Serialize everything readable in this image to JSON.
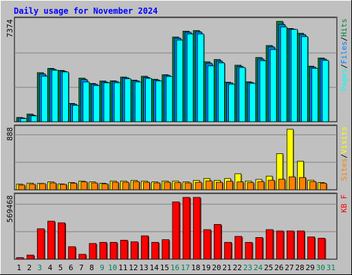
{
  "title": "Daily usage for November 2024",
  "colors": {
    "background": "#c0c0c0",
    "title": "#0000ff",
    "hits": "#008040",
    "files": "#0080ff",
    "pages": "#00ffff",
    "visits": "#ffff00",
    "sites": "#ff8000",
    "kbytes": "#ff0000",
    "weekend": "#00805c"
  },
  "chart_data": [
    {
      "type": "bar",
      "panel": "top",
      "ymax_label": "7374",
      "ylim": [
        0,
        7374
      ],
      "categories": [
        "1",
        "2",
        "3",
        "4",
        "5",
        "6",
        "7",
        "8",
        "9",
        "10",
        "11",
        "12",
        "13",
        "14",
        "15",
        "16",
        "17",
        "18",
        "19",
        "20",
        "21",
        "22",
        "23",
        "24",
        "25",
        "26",
        "27",
        "28",
        "29",
        "30",
        "31"
      ],
      "weekend_days": [
        "3",
        "9",
        "10",
        "16",
        "17",
        "23",
        "24",
        "30",
        "31"
      ],
      "legend": [
        {
          "label": "Hits",
          "color": "#008040"
        },
        {
          "label": "Files",
          "color": "#0080ff"
        },
        {
          "label": "Pages",
          "color": "#00ffff"
        }
      ],
      "series": [
        {
          "name": "Hits",
          "values": [
            310,
            560,
            3600,
            3920,
            3770,
            1340,
            3200,
            2810,
            2990,
            3000,
            3280,
            3050,
            3340,
            3120,
            3450,
            6220,
            6650,
            6700,
            4400,
            4570,
            2900,
            4150,
            2930,
            4720,
            5600,
            7374,
            6850,
            6500,
            4080,
            4680,
            0
          ]
        },
        {
          "name": "Files",
          "values": [
            280,
            480,
            3500,
            3850,
            3700,
            1280,
            3100,
            2750,
            2920,
            2950,
            3230,
            3000,
            3250,
            3060,
            3400,
            6130,
            6570,
            6600,
            4300,
            4450,
            2850,
            4060,
            2880,
            4600,
            5500,
            7150,
            6800,
            6400,
            4000,
            4600,
            0
          ]
        },
        {
          "name": "Pages",
          "values": [
            220,
            420,
            3340,
            3780,
            3650,
            1200,
            2920,
            2650,
            2850,
            2860,
            3150,
            2920,
            3180,
            2990,
            3320,
            6000,
            6450,
            6450,
            4100,
            4320,
            2760,
            3980,
            2820,
            4480,
            5300,
            6960,
            6780,
            6250,
            3920,
            4500,
            0
          ]
        }
      ]
    },
    {
      "type": "bar",
      "panel": "middle",
      "ymax_label": "888",
      "ylim": [
        0,
        888
      ],
      "legend": [
        {
          "label": "Visits",
          "color": "#ffff00"
        },
        {
          "label": "Sites",
          "color": "#ff8000"
        }
      ],
      "series": [
        {
          "name": "Visits",
          "values": [
            82,
            98,
            93,
            115,
            85,
            105,
            128,
            115,
            95,
            128,
            128,
            138,
            128,
            115,
            128,
            128,
            115,
            138,
            164,
            138,
            164,
            234,
            128,
            152,
            200,
            530,
            888,
            420,
            140,
            105,
            0
          ]
        },
        {
          "name": "Sites",
          "values": [
            70,
            82,
            90,
            100,
            80,
            95,
            115,
            100,
            85,
            110,
            110,
            120,
            110,
            100,
            110,
            105,
            100,
            110,
            130,
            110,
            125,
            115,
            105,
            120,
            140,
            155,
            190,
            180,
            120,
            95,
            0
          ]
        }
      ]
    },
    {
      "type": "bar",
      "panel": "bottom",
      "ymax_label": "569468",
      "ylim": [
        0,
        569468
      ],
      "legend": [
        {
          "label": "KB F",
          "color": "#ff0000"
        }
      ],
      "series": [
        {
          "name": "KB F",
          "values": [
            15000,
            38000,
            280000,
            350000,
            335000,
            115000,
            45000,
            145000,
            155000,
            155000,
            175000,
            160000,
            215000,
            155000,
            180000,
            527000,
            569000,
            569000,
            272000,
            320000,
            155000,
            210000,
            155000,
            200000,
            272000,
            260000,
            260000,
            260000,
            205000,
            193000,
            0
          ]
        }
      ]
    }
  ]
}
